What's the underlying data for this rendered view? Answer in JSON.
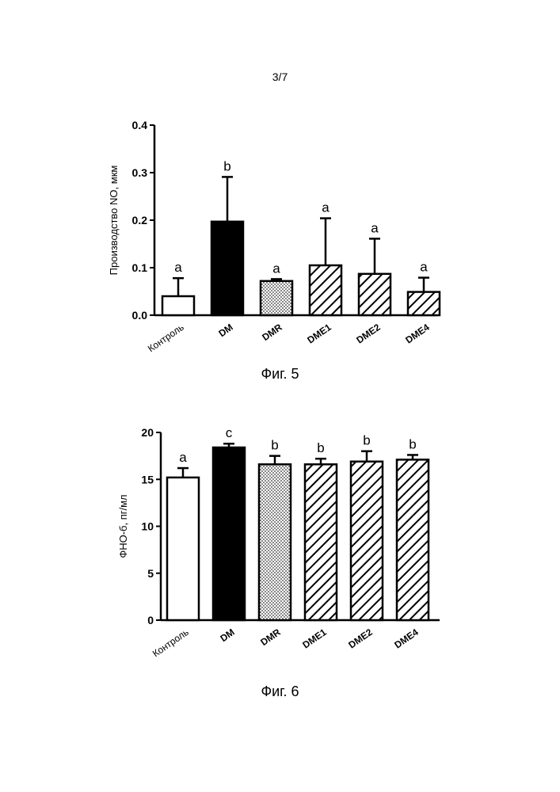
{
  "page": {
    "number": "3/7"
  },
  "chart_data": [
    {
      "type": "bar",
      "caption": "Фиг. 5",
      "ylabel": "Производство NO, мкм",
      "ylim": [
        0,
        0.4
      ],
      "yticks": [
        0.0,
        0.1,
        0.2,
        0.3,
        0.4
      ],
      "yticklabels": [
        "0.0",
        "0.1",
        "0.2",
        "0.3",
        "0.4"
      ],
      "categories": [
        "Контроль",
        "DM",
        "DMR",
        "DME1",
        "DME2",
        "DME4"
      ],
      "values": [
        0.04,
        0.197,
        0.072,
        0.105,
        0.087,
        0.049
      ],
      "errors": [
        0.038,
        0.094,
        0.004,
        0.099,
        0.074,
        0.03
      ],
      "significance": [
        "a",
        "b",
        "a",
        "a",
        "a",
        "a"
      ],
      "fills": [
        "white",
        "black",
        "dotted",
        "hatched",
        "hatched",
        "hatched"
      ]
    },
    {
      "type": "bar",
      "caption": "Фиг. 6",
      "ylabel": "ФНО-б, пг/мл",
      "ylim": [
        0,
        20
      ],
      "yticks": [
        0,
        5,
        10,
        15,
        20
      ],
      "yticklabels": [
        "0",
        "5",
        "10",
        "15",
        "20"
      ],
      "categories": [
        "Контроль",
        "DM",
        "DMR",
        "DME1",
        "DME2",
        "DME4"
      ],
      "values": [
        15.2,
        18.4,
        16.6,
        16.6,
        16.9,
        17.1
      ],
      "errors": [
        1.0,
        0.4,
        0.9,
        0.6,
        1.1,
        0.5
      ],
      "significance": [
        "a",
        "c",
        "b",
        "b",
        "b",
        "b"
      ],
      "fills": [
        "white",
        "black",
        "dotted",
        "hatched",
        "hatched",
        "hatched"
      ]
    }
  ]
}
